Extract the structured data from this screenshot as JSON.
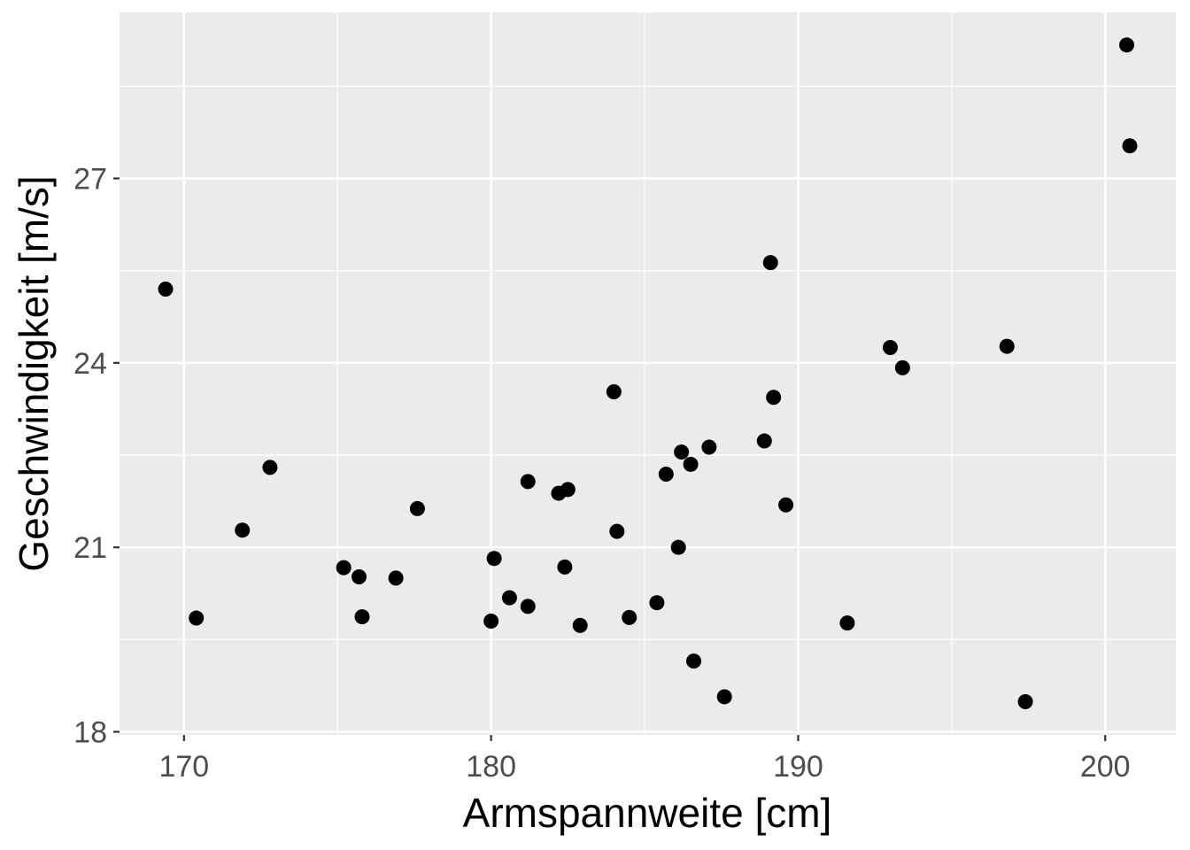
{
  "chart_data": {
    "type": "scatter",
    "xlabel": "Armspannweite [cm]",
    "ylabel": "Geschwindigkeit [m/s]",
    "xlim": [
      167.9,
      202.3
    ],
    "ylim": [
      17.95,
      29.7
    ],
    "x_ticks": [
      170,
      180,
      190,
      200
    ],
    "x_tick_labels": [
      "170",
      "180",
      "190",
      "200"
    ],
    "y_ticks": [
      18,
      21,
      24,
      27
    ],
    "y_tick_labels": [
      "18",
      "21",
      "24",
      "27"
    ],
    "x_minor_ticks": [
      175,
      185,
      195
    ],
    "y_minor_ticks": [
      19.5,
      22.5,
      25.5,
      28.5
    ],
    "grid": true,
    "panel_background": "#ebebeb",
    "grid_color": "#ffffff",
    "point_color": "#000000",
    "points": [
      {
        "x": 169.4,
        "y": 25.2
      },
      {
        "x": 170.4,
        "y": 19.85
      },
      {
        "x": 171.9,
        "y": 21.28
      },
      {
        "x": 172.8,
        "y": 22.3
      },
      {
        "x": 175.2,
        "y": 20.67
      },
      {
        "x": 175.7,
        "y": 20.52
      },
      {
        "x": 175.8,
        "y": 19.87
      },
      {
        "x": 176.9,
        "y": 20.5
      },
      {
        "x": 177.6,
        "y": 21.63
      },
      {
        "x": 180.0,
        "y": 19.8
      },
      {
        "x": 180.1,
        "y": 20.82
      },
      {
        "x": 180.6,
        "y": 20.18
      },
      {
        "x": 181.2,
        "y": 22.07
      },
      {
        "x": 181.2,
        "y": 20.04
      },
      {
        "x": 182.2,
        "y": 21.88
      },
      {
        "x": 182.4,
        "y": 20.68
      },
      {
        "x": 182.5,
        "y": 21.94
      },
      {
        "x": 182.9,
        "y": 19.73
      },
      {
        "x": 184.0,
        "y": 23.53
      },
      {
        "x": 184.1,
        "y": 21.26
      },
      {
        "x": 184.5,
        "y": 19.86
      },
      {
        "x": 185.4,
        "y": 20.1
      },
      {
        "x": 185.7,
        "y": 22.19
      },
      {
        "x": 186.1,
        "y": 21.0
      },
      {
        "x": 186.2,
        "y": 22.55
      },
      {
        "x": 186.5,
        "y": 22.35
      },
      {
        "x": 186.6,
        "y": 19.15
      },
      {
        "x": 187.1,
        "y": 22.63
      },
      {
        "x": 187.6,
        "y": 18.57
      },
      {
        "x": 188.9,
        "y": 22.73
      },
      {
        "x": 189.1,
        "y": 25.63
      },
      {
        "x": 189.2,
        "y": 23.44
      },
      {
        "x": 189.6,
        "y": 21.69
      },
      {
        "x": 191.6,
        "y": 19.77
      },
      {
        "x": 193.0,
        "y": 24.25
      },
      {
        "x": 193.4,
        "y": 23.92
      },
      {
        "x": 196.8,
        "y": 24.27
      },
      {
        "x": 197.4,
        "y": 18.49
      },
      {
        "x": 200.7,
        "y": 29.17
      },
      {
        "x": 200.8,
        "y": 27.53
      }
    ]
  }
}
